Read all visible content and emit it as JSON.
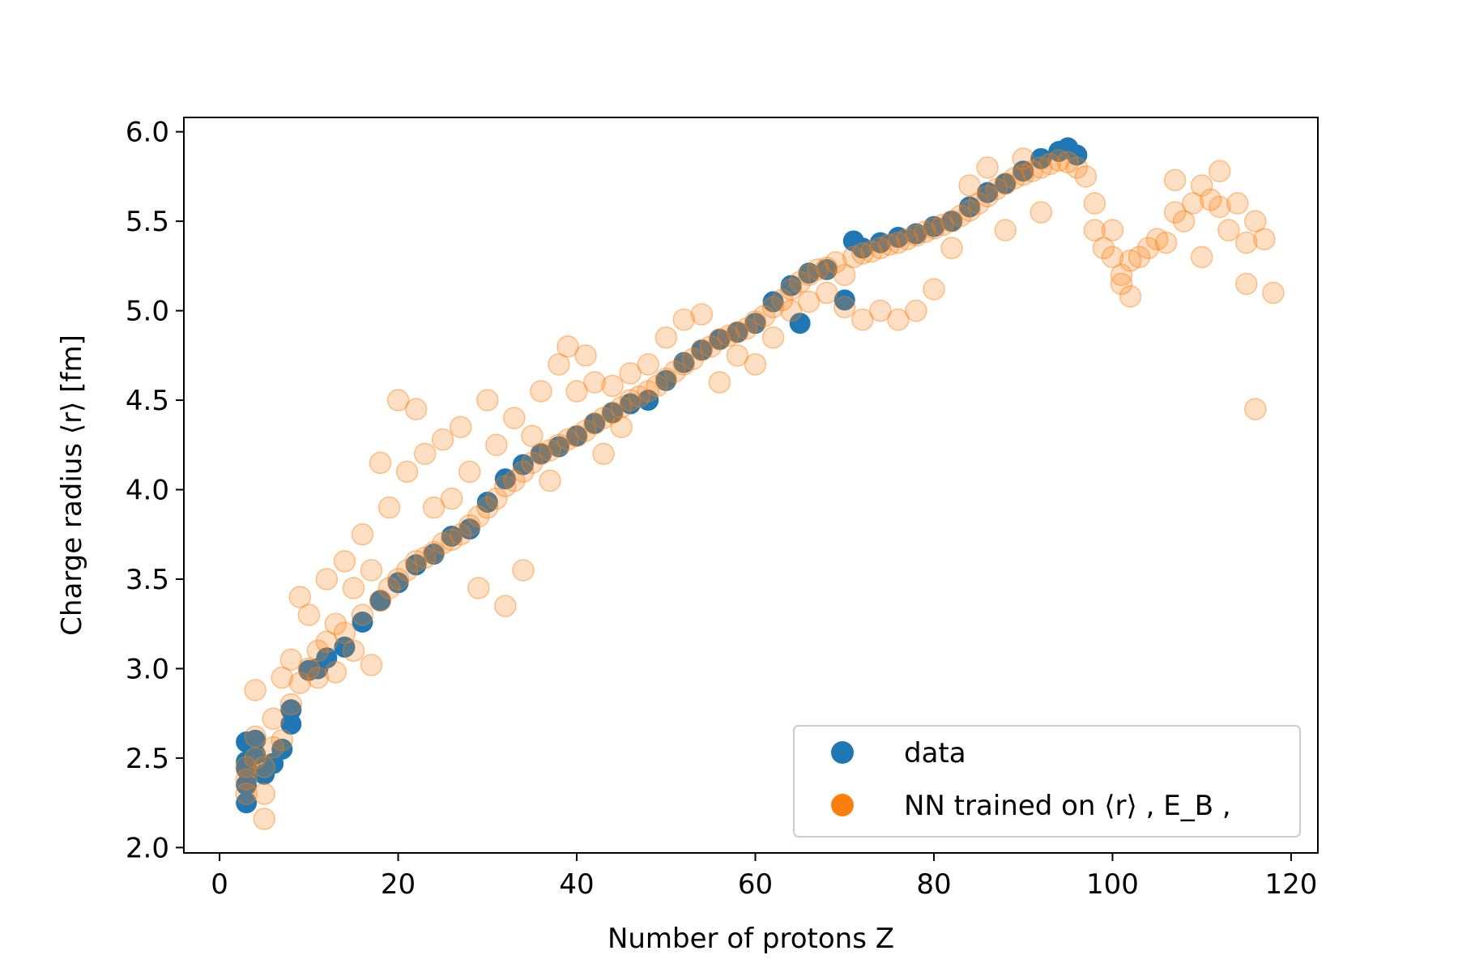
{
  "chart_data": {
    "type": "scatter",
    "title": "",
    "xlabel": "Number of protons Z",
    "ylabel": "Charge radius ⟨r⟩ [fm]",
    "xlim": [
      -4,
      123
    ],
    "ylim": [
      1.97,
      6.08
    ],
    "xticks": [
      0,
      20,
      40,
      60,
      80,
      100,
      120
    ],
    "yticks": [
      2.0,
      2.5,
      3.0,
      3.5,
      4.0,
      4.5,
      5.0,
      5.5,
      6.0
    ],
    "xtick_labels": [
      "0",
      "20",
      "40",
      "60",
      "80",
      "100",
      "120"
    ],
    "ytick_labels": [
      "2.0",
      "2.5",
      "3.0",
      "3.5",
      "4.0",
      "4.5",
      "5.0",
      "5.5",
      "6.0"
    ],
    "grid": false,
    "legend_position": "lower-right",
    "series": [
      {
        "name": "data",
        "color": "#1f77b4",
        "points": [
          [
            3,
            2.25
          ],
          [
            3,
            2.35
          ],
          [
            3,
            2.44
          ],
          [
            3,
            2.48
          ],
          [
            3,
            2.59
          ],
          [
            4,
            2.52
          ],
          [
            4,
            2.6
          ],
          [
            5,
            2.41
          ],
          [
            6,
            2.47
          ],
          [
            7,
            2.55
          ],
          [
            8,
            2.69
          ],
          [
            8,
            2.77
          ],
          [
            10,
            2.99
          ],
          [
            11,
            3.0
          ],
          [
            12,
            3.06
          ],
          [
            14,
            3.12
          ],
          [
            16,
            3.26
          ],
          [
            18,
            3.38
          ],
          [
            20,
            3.48
          ],
          [
            22,
            3.58
          ],
          [
            24,
            3.64
          ],
          [
            26,
            3.74
          ],
          [
            28,
            3.78
          ],
          [
            30,
            3.93
          ],
          [
            32,
            4.06
          ],
          [
            34,
            4.14
          ],
          [
            36,
            4.2
          ],
          [
            38,
            4.24
          ],
          [
            40,
            4.3
          ],
          [
            42,
            4.37
          ],
          [
            44,
            4.43
          ],
          [
            46,
            4.48
          ],
          [
            48,
            4.5
          ],
          [
            50,
            4.61
          ],
          [
            52,
            4.71
          ],
          [
            54,
            4.78
          ],
          [
            56,
            4.84
          ],
          [
            58,
            4.88
          ],
          [
            60,
            4.93
          ],
          [
            62,
            5.05
          ],
          [
            64,
            5.14
          ],
          [
            65,
            4.93
          ],
          [
            66,
            5.21
          ],
          [
            68,
            5.23
          ],
          [
            70,
            5.06
          ],
          [
            71,
            5.39
          ],
          [
            72,
            5.35
          ],
          [
            74,
            5.38
          ],
          [
            76,
            5.41
          ],
          [
            78,
            5.43
          ],
          [
            80,
            5.47
          ],
          [
            82,
            5.5
          ],
          [
            84,
            5.58
          ],
          [
            86,
            5.66
          ],
          [
            88,
            5.71
          ],
          [
            90,
            5.78
          ],
          [
            92,
            5.85
          ],
          [
            94,
            5.89
          ],
          [
            95,
            5.91
          ],
          [
            96,
            5.87
          ]
        ]
      },
      {
        "name": "NN trained on ⟨r⟩ ,  E_B ,",
        "color": "#ff7f0e",
        "points": [
          [
            3,
            2.3
          ],
          [
            3,
            2.38
          ],
          [
            3,
            2.45
          ],
          [
            4,
            2.5
          ],
          [
            4,
            2.62
          ],
          [
            4,
            2.88
          ],
          [
            5,
            2.16
          ],
          [
            5,
            2.3
          ],
          [
            5,
            2.45
          ],
          [
            6,
            2.56
          ],
          [
            6,
            2.72
          ],
          [
            7,
            2.6
          ],
          [
            7,
            2.95
          ],
          [
            8,
            2.8
          ],
          [
            8,
            3.05
          ],
          [
            9,
            2.92
          ],
          [
            9,
            3.4
          ],
          [
            10,
            3.0
          ],
          [
            10,
            3.3
          ],
          [
            11,
            2.95
          ],
          [
            11,
            3.1
          ],
          [
            12,
            3.15
          ],
          [
            12,
            3.5
          ],
          [
            13,
            2.98
          ],
          [
            13,
            3.25
          ],
          [
            14,
            3.2
          ],
          [
            14,
            3.6
          ],
          [
            15,
            3.1
          ],
          [
            15,
            3.45
          ],
          [
            16,
            3.3
          ],
          [
            16,
            3.75
          ],
          [
            17,
            3.02
          ],
          [
            17,
            3.55
          ],
          [
            18,
            3.38
          ],
          [
            18,
            4.15
          ],
          [
            19,
            3.45
          ],
          [
            19,
            3.9
          ],
          [
            20,
            3.5
          ],
          [
            20,
            4.5
          ],
          [
            21,
            3.55
          ],
          [
            21,
            4.1
          ],
          [
            22,
            3.6
          ],
          [
            22,
            4.45
          ],
          [
            23,
            3.62
          ],
          [
            23,
            4.2
          ],
          [
            24,
            3.65
          ],
          [
            24,
            3.9
          ],
          [
            25,
            3.7
          ],
          [
            25,
            4.28
          ],
          [
            26,
            3.72
          ],
          [
            26,
            3.95
          ],
          [
            27,
            3.75
          ],
          [
            27,
            4.35
          ],
          [
            28,
            3.8
          ],
          [
            28,
            4.1
          ],
          [
            29,
            3.85
          ],
          [
            29,
            3.45
          ],
          [
            30,
            3.9
          ],
          [
            30,
            4.5
          ],
          [
            31,
            3.95
          ],
          [
            31,
            4.25
          ],
          [
            32,
            4.02
          ],
          [
            32,
            3.35
          ],
          [
            33,
            4.05
          ],
          [
            33,
            4.4
          ],
          [
            34,
            4.1
          ],
          [
            34,
            3.55
          ],
          [
            35,
            4.15
          ],
          [
            35,
            4.3
          ],
          [
            36,
            4.2
          ],
          [
            36,
            4.55
          ],
          [
            37,
            4.22
          ],
          [
            37,
            4.05
          ],
          [
            38,
            4.25
          ],
          [
            38,
            4.7
          ],
          [
            39,
            4.28
          ],
          [
            39,
            4.8
          ],
          [
            40,
            4.3
          ],
          [
            40,
            4.55
          ],
          [
            41,
            4.33
          ],
          [
            41,
            4.75
          ],
          [
            42,
            4.37
          ],
          [
            42,
            4.6
          ],
          [
            43,
            4.4
          ],
          [
            43,
            4.2
          ],
          [
            44,
            4.43
          ],
          [
            44,
            4.58
          ],
          [
            45,
            4.46
          ],
          [
            45,
            4.35
          ],
          [
            46,
            4.5
          ],
          [
            46,
            4.65
          ],
          [
            47,
            4.52
          ],
          [
            48,
            4.55
          ],
          [
            48,
            4.7
          ],
          [
            49,
            4.58
          ],
          [
            50,
            4.62
          ],
          [
            50,
            4.85
          ],
          [
            51,
            4.66
          ],
          [
            52,
            4.7
          ],
          [
            52,
            4.95
          ],
          [
            53,
            4.73
          ],
          [
            54,
            4.78
          ],
          [
            54,
            4.98
          ],
          [
            55,
            4.8
          ],
          [
            56,
            4.84
          ],
          [
            56,
            4.6
          ],
          [
            57,
            4.86
          ],
          [
            58,
            4.88
          ],
          [
            58,
            4.75
          ],
          [
            59,
            4.9
          ],
          [
            60,
            4.94
          ],
          [
            60,
            4.7
          ],
          [
            61,
            4.97
          ],
          [
            62,
            5.02
          ],
          [
            62,
            4.85
          ],
          [
            63,
            5.06
          ],
          [
            64,
            5.12
          ],
          [
            64,
            5.0
          ],
          [
            65,
            5.16
          ],
          [
            66,
            5.2
          ],
          [
            66,
            5.05
          ],
          [
            67,
            5.23
          ],
          [
            68,
            5.24
          ],
          [
            68,
            5.1
          ],
          [
            69,
            5.27
          ],
          [
            70,
            5.2
          ],
          [
            70,
            5.02
          ],
          [
            71,
            5.3
          ],
          [
            72,
            5.32
          ],
          [
            72,
            4.95
          ],
          [
            73,
            5.33
          ],
          [
            74,
            5.35
          ],
          [
            74,
            5.0
          ],
          [
            75,
            5.37
          ],
          [
            76,
            5.38
          ],
          [
            76,
            4.95
          ],
          [
            77,
            5.4
          ],
          [
            78,
            5.42
          ],
          [
            78,
            5.0
          ],
          [
            79,
            5.44
          ],
          [
            80,
            5.46
          ],
          [
            80,
            5.12
          ],
          [
            81,
            5.48
          ],
          [
            82,
            5.5
          ],
          [
            82,
            5.35
          ],
          [
            83,
            5.53
          ],
          [
            84,
            5.56
          ],
          [
            84,
            5.7
          ],
          [
            85,
            5.6
          ],
          [
            86,
            5.64
          ],
          [
            86,
            5.8
          ],
          [
            87,
            5.68
          ],
          [
            88,
            5.71
          ],
          [
            88,
            5.45
          ],
          [
            89,
            5.74
          ],
          [
            90,
            5.76
          ],
          [
            90,
            5.85
          ],
          [
            91,
            5.78
          ],
          [
            92,
            5.8
          ],
          [
            92,
            5.55
          ],
          [
            93,
            5.82
          ],
          [
            94,
            5.84
          ],
          [
            95,
            5.83
          ],
          [
            96,
            5.8
          ],
          [
            97,
            5.75
          ],
          [
            98,
            5.45
          ],
          [
            98,
            5.6
          ],
          [
            99,
            5.35
          ],
          [
            100,
            5.3
          ],
          [
            100,
            5.45
          ],
          [
            101,
            5.2
          ],
          [
            101,
            5.15
          ],
          [
            102,
            5.28
          ],
          [
            102,
            5.08
          ],
          [
            103,
            5.3
          ],
          [
            104,
            5.35
          ],
          [
            105,
            5.4
          ],
          [
            106,
            5.38
          ],
          [
            107,
            5.55
          ],
          [
            107,
            5.73
          ],
          [
            108,
            5.5
          ],
          [
            109,
            5.6
          ],
          [
            110,
            5.7
          ],
          [
            110,
            5.3
          ],
          [
            111,
            5.62
          ],
          [
            112,
            5.58
          ],
          [
            112,
            5.78
          ],
          [
            113,
            5.45
          ],
          [
            114,
            5.6
          ],
          [
            115,
            5.38
          ],
          [
            115,
            5.15
          ],
          [
            116,
            5.5
          ],
          [
            116,
            4.45
          ],
          [
            117,
            5.4
          ],
          [
            118,
            5.1
          ]
        ]
      }
    ]
  }
}
